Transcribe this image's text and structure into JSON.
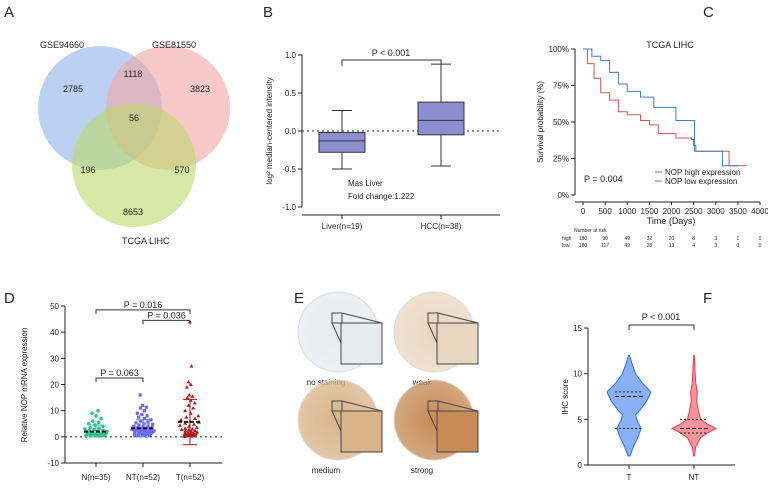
{
  "panels": {
    "a": "A",
    "b": "B",
    "c": "C",
    "d": "D",
    "e": "E",
    "f": "F"
  },
  "colors": {
    "blue": "#8fb3ea",
    "red": "#f2a3a3",
    "green": "#bcd96a",
    "km_high": "#d9534f",
    "km_low": "#3f7fbf",
    "d_n": "#2fbf8f",
    "d_nt": "#6a6af0",
    "d_t": "#b01a1a",
    "f_t": "#2a6ff0",
    "f_nt": "#f03a4a"
  },
  "venn": {
    "sets": [
      "GSE94660",
      "GSE81550",
      "TCGA LIHC"
    ],
    "counts": {
      "only_a": "2785",
      "ab": "1118",
      "only_b": "3823",
      "abc": "56",
      "ac": "196",
      "bc": "570",
      "only_c": "8653"
    }
  },
  "chart_data": [
    {
      "type": "box",
      "ylabel": "log² median-centered intensity",
      "ylim": [
        -1,
        1
      ],
      "yticks": [
        "-1.0",
        "-0.5",
        "0.0",
        "0.5",
        "1.0"
      ],
      "categories": [
        "Liver(n=19)",
        "HCC(n=38)"
      ],
      "boxes": [
        {
          "min": -0.5,
          "q1": -0.28,
          "median": -0.13,
          "q3": -0.02,
          "max": 0.27
        },
        {
          "min": -0.46,
          "q1": -0.05,
          "median": 0.14,
          "q3": 0.38,
          "max": 0.88
        }
      ],
      "annotation": "P < 0.001",
      "note1": "Mas Liver",
      "note2": "Fold change:1.222"
    },
    {
      "type": "line",
      "title": "TCGA LIHC",
      "ylabel": "Survival probability (%)",
      "xlabel": "Time (Days)",
      "xlim": [
        0,
        4000
      ],
      "ylim": [
        0,
        100
      ],
      "xticks": [
        "0",
        "500",
        "1000",
        "1500",
        "2000",
        "2500",
        "3000",
        "3500",
        "4000"
      ],
      "yticks": [
        "0%",
        "25%",
        "50%",
        "75%",
        "100%"
      ],
      "pvalue": "P = 0.004",
      "series": [
        {
          "name": "NOP high expression",
          "points": [
            [
              0,
              100
            ],
            [
              100,
              90
            ],
            [
              250,
              80
            ],
            [
              400,
              70
            ],
            [
              600,
              65
            ],
            [
              800,
              57
            ],
            [
              1000,
              55
            ],
            [
              1300,
              51
            ],
            [
              1500,
              48
            ],
            [
              1700,
              42
            ],
            [
              2100,
              39
            ],
            [
              2450,
              38
            ],
            [
              2500,
              34
            ],
            [
              2550,
              30
            ],
            [
              3250,
              30
            ],
            [
              3300,
              20
            ],
            [
              3700,
              20
            ]
          ]
        },
        {
          "name": "NOP low expression",
          "points": [
            [
              0,
              100
            ],
            [
              200,
              95
            ],
            [
              400,
              92
            ],
            [
              600,
              84
            ],
            [
              800,
              76
            ],
            [
              1000,
              71
            ],
            [
              1300,
              67
            ],
            [
              1600,
              60
            ],
            [
              2100,
              51
            ],
            [
              2500,
              51
            ],
            [
              2520,
              30
            ],
            [
              3100,
              30
            ],
            [
              3150,
              20
            ],
            [
              3500,
              20
            ]
          ]
        }
      ],
      "risk_table": {
        "title": "Number at risk",
        "rows": [
          {
            "label": "high",
            "values": [
              "180",
              "90",
              "49",
              "32",
              "20",
              "8",
              "3",
              "1",
              "0"
            ]
          },
          {
            "label": "low",
            "values": [
              "180",
              "117",
              "49",
              "28",
              "13",
              "4",
              "3",
              "0",
              "0"
            ]
          }
        ]
      }
    },
    {
      "type": "scatter",
      "ylabel": "Relative NOP mRNA expression",
      "ylim": [
        -10,
        50
      ],
      "yticks": [
        "-10",
        "0",
        "10",
        "20",
        "30",
        "40",
        "50"
      ],
      "categories": [
        "N(n=35)",
        "NT(n=52)",
        "T(n=52)"
      ],
      "groups": [
        {
          "mean": 2,
          "sd_hi": 4.5,
          "sd_lo": 0,
          "values": [
            0.2,
            0.3,
            0.4,
            0.5,
            0.5,
            0.6,
            0.7,
            0.8,
            0.9,
            1,
            1,
            1.1,
            1.2,
            1.3,
            1.4,
            1.5,
            1.6,
            1.8,
            2,
            2.1,
            2.3,
            2.5,
            2.8,
            3,
            3.2,
            3.5,
            4,
            4.5,
            5,
            5.5,
            6,
            7,
            8,
            9,
            10
          ]
        },
        {
          "mean": 3.3,
          "sd_hi": 6.5,
          "sd_lo": 0,
          "values": [
            0.3,
            0.5,
            0.6,
            0.8,
            0.9,
            1,
            1.1,
            1.2,
            1.3,
            1.4,
            1.5,
            1.6,
            1.7,
            1.8,
            1.9,
            2,
            2.1,
            2.2,
            2.3,
            2.4,
            2.5,
            2.6,
            2.7,
            2.8,
            2.9,
            3,
            3.1,
            3.2,
            3.3,
            3.4,
            3.5,
            3.6,
            3.8,
            4,
            4.2,
            4.5,
            4.8,
            5,
            5.3,
            5.6,
            6,
            6.5,
            7,
            7.5,
            8,
            8.5,
            9,
            10,
            11,
            11.3,
            12,
            16
          ]
        },
        {
          "mean": 5.7,
          "sd_hi": 14.3,
          "sd_lo": -3,
          "values": [
            0.1,
            0.2,
            0.3,
            0.4,
            0.5,
            0.5,
            0.6,
            0.7,
            0.8,
            0.9,
            1,
            1,
            1.1,
            1.2,
            1.3,
            1.4,
            1.5,
            1.6,
            1.8,
            2,
            2.2,
            2.4,
            2.6,
            2.8,
            3,
            3.3,
            3.6,
            4,
            4.4,
            4.8,
            5.2,
            5.6,
            6,
            6.5,
            7,
            7.5,
            8,
            9,
            10,
            11,
            12,
            13,
            14,
            15,
            15.5,
            16,
            19,
            20,
            21,
            27,
            44,
            0.3
          ]
        }
      ],
      "comparisons": [
        {
          "label": "P = 0.016",
          "from": 0,
          "to": 2
        },
        {
          "label": "P = 0.036",
          "from": 1,
          "to": 2
        },
        {
          "label": "P = 0.063",
          "from": 0,
          "to": 1
        }
      ]
    },
    {
      "type": "violin",
      "ylabel": "IHC score",
      "ylim": [
        0,
        15
      ],
      "yticks": [
        "0",
        "5",
        "10",
        "15"
      ],
      "categories": [
        "T",
        "NT"
      ],
      "groups": [
        {
          "q1": 4,
          "median": 7.5,
          "q3": 8,
          "profile": [
            [
              1,
              0.05
            ],
            [
              2,
              0.2
            ],
            [
              3,
              0.4
            ],
            [
              4,
              0.55
            ],
            [
              5,
              0.35
            ],
            [
              5.5,
              0.3
            ],
            [
              6,
              0.5
            ],
            [
              7,
              0.8
            ],
            [
              8,
              1
            ],
            [
              9,
              0.6
            ],
            [
              10,
              0.3
            ],
            [
              11,
              0.15
            ],
            [
              12,
              0.02
            ]
          ]
        },
        {
          "q1": 3.5,
          "median": 4,
          "q3": 5,
          "profile": [
            [
              1,
              0.02
            ],
            [
              2,
              0.08
            ],
            [
              3,
              0.3
            ],
            [
              3.5,
              0.6
            ],
            [
              4,
              1
            ],
            [
              4.5,
              0.6
            ],
            [
              5,
              0.3
            ],
            [
              6,
              0.2
            ],
            [
              7,
              0.12
            ],
            [
              8,
              0.15
            ],
            [
              9,
              0.08
            ],
            [
              10,
              0.05
            ],
            [
              11,
              0.04
            ],
            [
              12,
              0.01
            ]
          ]
        }
      ],
      "annotation": "P < 0.001"
    }
  ],
  "ihc": {
    "labels": [
      "no staining",
      "weak",
      "medium",
      "strong"
    ],
    "tints": [
      "#e6ebf2",
      "#e9d6c0",
      "#d9b48a",
      "#c68a55"
    ]
  }
}
